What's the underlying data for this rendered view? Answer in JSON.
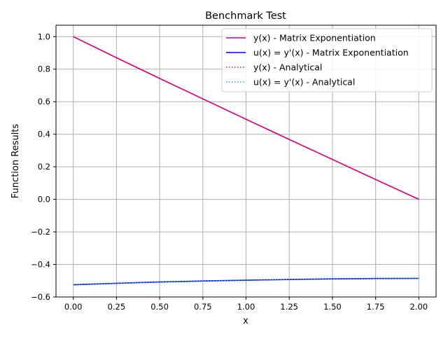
{
  "chart_data": {
    "type": "line",
    "title": "Benchmark Test",
    "xlabel": "x",
    "ylabel": "Function Results",
    "xlim": [
      -0.1,
      2.1
    ],
    "ylim": [
      -0.6,
      1.07
    ],
    "x_ticks": [
      0.0,
      0.25,
      0.5,
      0.75,
      1.0,
      1.25,
      1.5,
      1.75,
      2.0
    ],
    "x_tick_labels": [
      "0.00",
      "0.25",
      "0.50",
      "0.75",
      "1.00",
      "1.25",
      "1.50",
      "1.75",
      "2.00"
    ],
    "y_ticks": [
      -0.6,
      -0.4,
      -0.2,
      0.0,
      0.2,
      0.4,
      0.6,
      0.8,
      1.0
    ],
    "y_tick_labels": [
      "−0.6",
      "−0.4",
      "−0.2",
      "0.0",
      "0.2",
      "0.4",
      "0.6",
      "0.8",
      "1.0"
    ],
    "grid": true,
    "legend_position": "top-right",
    "x": [
      0.0,
      0.25,
      0.5,
      0.75,
      1.0,
      1.25,
      1.5,
      1.75,
      2.0
    ],
    "series": [
      {
        "name": "y(x) - Matrix Exponentiation",
        "color": "#bf00bf",
        "style": "solid",
        "values": [
          1.0,
          0.87,
          0.743,
          0.617,
          0.492,
          0.368,
          0.245,
          0.122,
          0.0
        ]
      },
      {
        "name": "u(x) = y'(x) - Matrix Exponentiation",
        "color": "#0000ff",
        "style": "solid",
        "values": [
          -0.525,
          -0.516,
          -0.508,
          -0.502,
          -0.497,
          -0.493,
          -0.489,
          -0.487,
          -0.486
        ]
      },
      {
        "name": "y(x) - Analytical",
        "color": "#ff0000",
        "style": "dotted",
        "values": [
          1.0,
          0.87,
          0.743,
          0.617,
          0.492,
          0.368,
          0.245,
          0.122,
          0.0
        ]
      },
      {
        "name": "u(x) = y'(x) - Analytical",
        "color": "#00bfbf",
        "style": "dotted",
        "values": [
          -0.525,
          -0.516,
          -0.508,
          -0.502,
          -0.497,
          -0.493,
          -0.489,
          -0.487,
          -0.486
        ]
      }
    ]
  }
}
